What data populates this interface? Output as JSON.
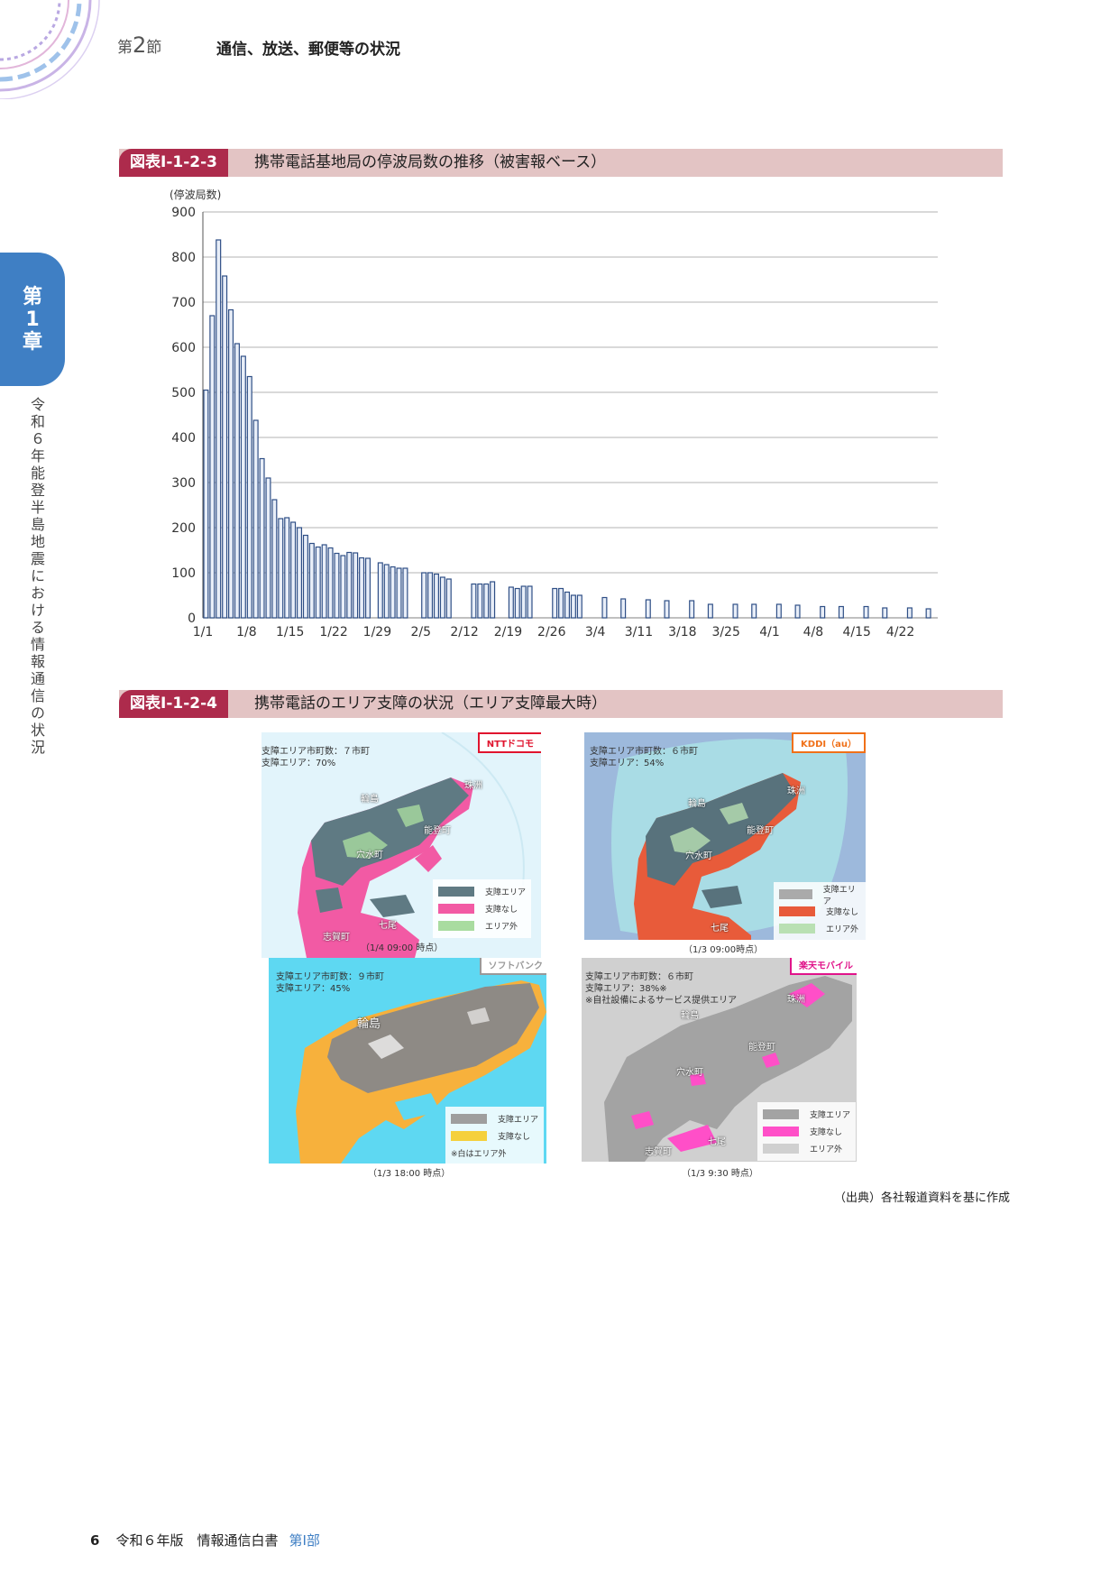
{
  "header": {
    "section_prefix": "第",
    "section_number": "2",
    "section_suffix": "節",
    "section_title": "通信、放送、郵便等の状況"
  },
  "side_tab": {
    "chapter_line1": "第",
    "chapter_line2": "1",
    "chapter_line3": "章",
    "vertical_text": "令和６年能登半島地震における情報通信の状況"
  },
  "figure1": {
    "id": "図表Ⅰ-1-2-3",
    "title": "携帯電話基地局の停波局数の推移（被害報ベース）"
  },
  "chart_data": {
    "type": "bar",
    "title": "",
    "ylabel": "(停波局数)",
    "xlabel": "",
    "ylim": [
      0,
      900
    ],
    "yticks": [
      0,
      100,
      200,
      300,
      400,
      500,
      600,
      700,
      800,
      900
    ],
    "xticks": [
      "1/1",
      "1/8",
      "1/15",
      "1/22",
      "1/29",
      "2/5",
      "2/12",
      "2/19",
      "2/26",
      "3/4",
      "3/11",
      "3/18",
      "3/25",
      "4/1",
      "4/8",
      "4/15",
      "4/22"
    ],
    "grid": true,
    "bar_color": "#2f4f86",
    "x": [
      "1/1",
      "1/2",
      "1/3",
      "1/4",
      "1/5",
      "1/6",
      "1/7",
      "1/8",
      "1/9",
      "1/10",
      "1/11",
      "1/12",
      "1/13",
      "1/14",
      "1/15",
      "1/16",
      "1/17",
      "1/18",
      "1/19",
      "1/20",
      "1/21",
      "1/22",
      "1/23",
      "1/24",
      "1/25",
      "1/26",
      "1/27",
      "1/29",
      "1/30",
      "1/31",
      "2/1",
      "2/2",
      "2/5",
      "2/6",
      "2/7",
      "2/8",
      "2/9",
      "2/13",
      "2/14",
      "2/15",
      "2/16",
      "2/19",
      "2/20",
      "2/21",
      "2/22",
      "2/26",
      "2/27",
      "2/28",
      "2/29",
      "3/1",
      "3/5",
      "3/8",
      "3/12",
      "3/15",
      "3/19",
      "3/22",
      "3/26",
      "3/29",
      "4/2",
      "4/5",
      "4/9",
      "4/12",
      "4/16",
      "4/19",
      "4/23",
      "4/26"
    ],
    "values": [
      505,
      670,
      838,
      758,
      683,
      608,
      580,
      535,
      438,
      353,
      310,
      262,
      220,
      222,
      212,
      200,
      183,
      165,
      157,
      162,
      155,
      143,
      138,
      145,
      144,
      133,
      132,
      122,
      118,
      113,
      110,
      110,
      100,
      100,
      97,
      90,
      86,
      75,
      75,
      75,
      80,
      68,
      65,
      70,
      70,
      65,
      65,
      57,
      50,
      50,
      45,
      42,
      40,
      38,
      38,
      30,
      30,
      30,
      30,
      28,
      25,
      25,
      25,
      22,
      22,
      20
    ]
  },
  "figure2": {
    "id": "図表Ⅰ-1-2-4",
    "title": "携帯電話のエリア支障の状況（エリア支障最大時）"
  },
  "maps": [
    {
      "carrier": "NTTドコモ",
      "badge_color": "#e0142e",
      "stats": "支障エリア市町数：７市町\n支障エリア：70%",
      "legend": [
        "支障エリア",
        "支障なし",
        "エリア外"
      ],
      "legend_colors": [
        "#5f7a83",
        "#f25aa4",
        "#a9dca0"
      ],
      "legend_note": "",
      "time": "（1/4 09:00 時点）",
      "places": [
        "輪島",
        "珠洲",
        "能登町",
        "穴水町",
        "七尾",
        "志賀町"
      ]
    },
    {
      "carrier": "KDDI（au）",
      "badge_color": "#f07018",
      "stats": "支障エリア市町数：６市町\n支障エリア：54%",
      "legend": [
        "支障エリア",
        "支障なし",
        "エリア外"
      ],
      "legend_colors": [
        "#aaaaaa",
        "#e85b3a",
        "#b9e0b3"
      ],
      "legend_note": "",
      "time": "（1/3 09:00時点）",
      "places": [
        "輪島",
        "珠洲",
        "能登町",
        "穴水町",
        "七尾"
      ]
    },
    {
      "carrier": "ソフトバンク",
      "badge_color": "#999999",
      "stats": "支障エリア市町数：９市町\n支障エリア：45%",
      "legend": [
        "支障エリア",
        "支障なし"
      ],
      "legend_colors": [
        "#9e9e9e",
        "#f5d03c"
      ],
      "legend_note": "※白はエリア外",
      "time": "（1/3 18:00 時点）",
      "places": [
        "輪島"
      ]
    },
    {
      "carrier": "楽天モバイル",
      "badge_color": "#e0148a",
      "stats": "支障エリア市町数：６市町\n支障エリア：38%※\n※自社設備によるサービス提供エリア",
      "legend": [
        "支障エリア",
        "支障なし",
        "エリア外"
      ],
      "legend_colors": [
        "#a3a3a3",
        "#ff4fc8",
        "#d0d0d0"
      ],
      "legend_note": "",
      "time": "（1/3 9:30 時点）",
      "places": [
        "珠洲",
        "輪島",
        "能登町",
        "穴水町",
        "七尾",
        "志賀町"
      ]
    }
  ],
  "source": "（出典）各社報道資料を基に作成",
  "footer": {
    "page": "6",
    "book": "令和６年版　情報通信白書",
    "part": "第Ⅰ部"
  }
}
